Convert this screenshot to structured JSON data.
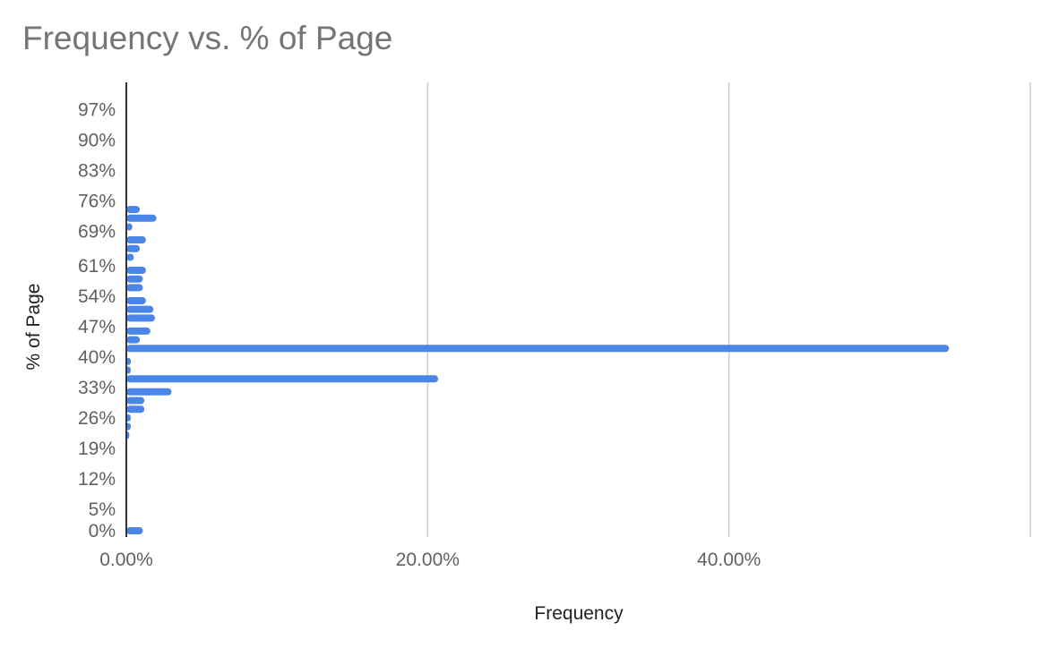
{
  "chart_data": {
    "type": "bar",
    "orientation": "horizontal",
    "title": "Frequency vs. % of Page",
    "xlabel": "Frequency",
    "ylabel": "% of Page",
    "x_tick_labels": [
      "0.00%",
      "20.00%",
      "40.00%"
    ],
    "x_ticks": [
      0,
      20,
      40
    ],
    "xlim": [
      0,
      60
    ],
    "y_tick_labels": [
      "0%",
      "5%",
      "12%",
      "19%",
      "26%",
      "33%",
      "40%",
      "47%",
      "54%",
      "61%",
      "69%",
      "76%",
      "83%",
      "90%",
      "97%"
    ],
    "y_ticks": [
      0,
      5,
      12,
      19,
      26,
      33,
      40,
      47,
      54,
      61,
      69,
      76,
      83,
      90,
      97
    ],
    "ylim": [
      0,
      100
    ],
    "grid": "vertical",
    "legend": "none",
    "bar_color": "#4a86e8",
    "series": [
      {
        "y": [
          0,
          22,
          24,
          26,
          28,
          30,
          32,
          35,
          37,
          39,
          42,
          44,
          46,
          49,
          51,
          53,
          56,
          58,
          60,
          63,
          65,
          67,
          70,
          72,
          74
        ],
        "values": [
          1.1,
          0.2,
          0.3,
          0.3,
          1.2,
          1.2,
          3.0,
          20.7,
          0.3,
          0.3,
          54.6,
          0.9,
          1.6,
          1.9,
          1.8,
          1.3,
          1.1,
          1.1,
          1.3,
          0.5,
          0.9,
          1.3,
          0.4,
          2.0,
          0.9
        ]
      }
    ]
  }
}
